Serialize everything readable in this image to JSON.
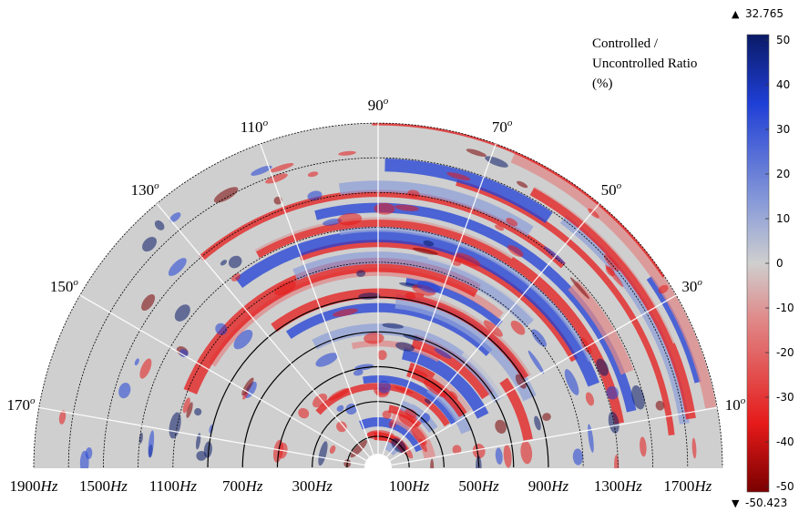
{
  "chart_data": {
    "type": "heatmap",
    "subtype": "polar-half-disk",
    "title": "",
    "angle_ticks": [
      "10",
      "30",
      "50",
      "70",
      "90",
      "110",
      "130",
      "150",
      "170"
    ],
    "angle_unit_superscript": "o",
    "radial_ticks_left": [
      "300",
      "700",
      "1100",
      "1500",
      "1900"
    ],
    "radial_ticks_right": [
      "100",
      "500",
      "900",
      "1300",
      "1700"
    ],
    "radial_unit": "Hz",
    "radial_range": [
      0,
      1900
    ],
    "colorbar": {
      "title_lines": [
        "Controlled /",
        "Uncontrolled Ratio",
        "(%)"
      ],
      "ticks": [
        "50",
        "40",
        "30",
        "20",
        "10",
        "0",
        "-10",
        "-20",
        "-30",
        "-40",
        "-50"
      ],
      "range": [
        -50,
        50
      ],
      "max_marker": "32.765",
      "min_marker": "-50.423",
      "colors": {
        "top": "#0a1a66",
        "high": "#1f3fd6",
        "mid_high": "#8fa0d8",
        "center": "#cfcfcf",
        "mid_low": "#e08a8a",
        "low": "#e61a1a",
        "bottom": "#7a0000"
      }
    },
    "grid_lines": "black semicircles at each radial tick; white spokes at each angle tick"
  }
}
